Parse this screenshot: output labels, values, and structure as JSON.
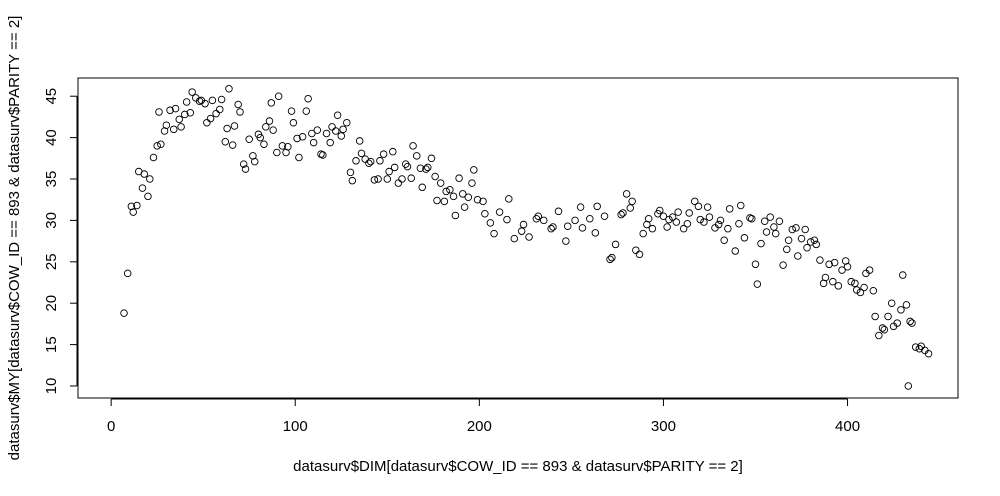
{
  "chart_data": {
    "type": "scatter",
    "xlabel": "datasurv$DIM[datasurv$COW_ID == 893 & datasurv$PARITY == 2]",
    "ylabel": "datasurv$MY[datasurv$COW_ID == 893 & datasurv$PARITY == 2]",
    "xlim": [
      -18,
      460
    ],
    "ylim": [
      8.55,
      47.2
    ],
    "xticks": [
      0,
      100,
      200,
      300,
      400
    ],
    "yticks": [
      10,
      15,
      20,
      25,
      30,
      35,
      40,
      45
    ],
    "color": "#000000",
    "x": [
      7,
      9,
      11,
      12,
      14,
      15,
      17,
      18,
      20,
      21,
      23,
      25,
      26,
      27,
      29,
      30,
      32,
      34,
      35,
      37,
      38,
      40,
      41,
      43,
      44,
      46,
      48,
      49,
      51,
      52,
      54,
      55,
      57,
      59,
      60,
      62,
      63,
      64,
      66,
      67,
      69,
      70,
      72,
      73,
      75,
      77,
      78,
      80,
      81,
      83,
      84,
      86,
      87,
      88,
      90,
      91,
      93,
      95,
      96,
      98,
      99,
      101,
      102,
      104,
      106,
      107,
      109,
      110,
      112,
      114,
      115,
      117,
      119,
      120,
      122,
      123,
      125,
      126,
      128,
      130,
      131,
      133,
      135,
      136,
      138,
      140,
      141,
      143,
      145,
      146,
      148,
      150,
      151,
      153,
      154,
      156,
      158,
      160,
      161,
      163,
      164,
      166,
      168,
      169,
      171,
      172,
      174,
      176,
      177,
      179,
      181,
      182,
      184,
      186,
      187,
      189,
      191,
      192,
      194,
      196,
      197,
      199,
      202,
      203,
      206,
      208,
      211,
      215,
      216,
      219,
      223,
      224,
      227,
      231,
      232,
      235,
      239,
      240,
      243,
      247,
      248,
      252,
      255,
      256,
      260,
      263,
      264,
      268,
      271,
      272,
      274,
      277,
      278,
      280,
      282,
      283,
      285,
      287,
      289,
      291,
      292,
      294,
      297,
      298,
      300,
      302,
      303,
      305,
      307,
      308,
      311,
      313,
      314,
      317,
      319,
      320,
      322,
      324,
      325,
      328,
      330,
      331,
      333,
      335,
      336,
      339,
      341,
      342,
      344,
      347,
      348,
      350,
      351,
      353,
      355,
      356,
      358,
      360,
      361,
      363,
      365,
      367,
      368,
      370,
      372,
      373,
      375,
      377,
      378,
      380,
      382,
      383,
      385,
      387,
      388,
      390,
      392,
      393,
      395,
      397,
      399,
      400,
      402,
      404,
      405,
      407,
      409,
      410,
      412,
      414,
      415,
      417,
      419,
      420,
      422,
      424,
      425,
      427,
      429,
      430,
      432,
      433,
      434,
      435,
      437,
      439,
      440,
      442,
      444
    ],
    "values": [
      18.8,
      23.6,
      31.7,
      31.0,
      31.8,
      35.9,
      33.9,
      35.6,
      32.9,
      35.0,
      37.6,
      39.0,
      43.1,
      39.2,
      40.8,
      41.5,
      43.3,
      41.0,
      43.5,
      42.2,
      41.3,
      42.8,
      44.3,
      43.0,
      45.5,
      44.8,
      44.4,
      44.5,
      44.1,
      41.8,
      42.3,
      44.5,
      42.9,
      43.4,
      44.6,
      39.5,
      41.1,
      45.9,
      39.1,
      41.4,
      44.0,
      43.1,
      36.8,
      36.2,
      39.8,
      37.8,
      37.1,
      40.4,
      40.0,
      39.2,
      41.3,
      42.0,
      44.2,
      40.9,
      38.2,
      45.0,
      39.0,
      38.2,
      38.9,
      43.2,
      41.8,
      39.9,
      37.6,
      40.1,
      43.2,
      44.7,
      40.5,
      39.4,
      40.9,
      38.0,
      37.9,
      40.5,
      39.4,
      41.3,
      40.8,
      42.7,
      40.2,
      41.0,
      41.8,
      35.8,
      34.8,
      37.2,
      39.6,
      38.1,
      37.4,
      36.9,
      37.1,
      34.9,
      35.0,
      37.2,
      38.0,
      35.0,
      35.9,
      38.3,
      36.4,
      34.5,
      35.0,
      36.8,
      36.5,
      35.1,
      39.0,
      37.8,
      36.3,
      34.0,
      36.2,
      36.4,
      37.5,
      35.3,
      32.4,
      34.5,
      32.3,
      33.5,
      33.7,
      32.9,
      30.6,
      35.1,
      33.2,
      31.6,
      32.8,
      34.5,
      36.1,
      32.5,
      32.3,
      30.8,
      29.7,
      28.4,
      31.0,
      30.1,
      32.6,
      27.8,
      28.7,
      29.5,
      28.0,
      30.2,
      30.5,
      30.0,
      29.0,
      29.2,
      31.1,
      27.5,
      29.3,
      30.0,
      31.6,
      29.1,
      30.2,
      28.5,
      31.7,
      30.5,
      25.3,
      25.5,
      27.1,
      30.7,
      30.9,
      33.2,
      31.5,
      32.3,
      26.4,
      25.9,
      28.4,
      29.5,
      30.2,
      29.0,
      30.8,
      31.2,
      30.5,
      29.2,
      30.1,
      30.4,
      29.8,
      31.0,
      29.0,
      29.6,
      30.9,
      32.3,
      31.7,
      30.1,
      29.8,
      31.6,
      30.4,
      29.1,
      29.5,
      30.0,
      27.6,
      29.0,
      31.4,
      26.3,
      29.6,
      31.8,
      27.9,
      30.3,
      30.2,
      24.7,
      22.3,
      27.2,
      29.9,
      28.6,
      30.4,
      29.2,
      28.4,
      29.9,
      24.6,
      26.5,
      27.6,
      28.9,
      29.1,
      25.7,
      27.8,
      28.9,
      26.7,
      27.4,
      27.6,
      27.1,
      25.2,
      22.4,
      23.1,
      24.7,
      22.6,
      24.9,
      22.1,
      24.0,
      25.1,
      24.4,
      22.6,
      22.4,
      21.6,
      21.3,
      21.9,
      23.6,
      24.0,
      21.5,
      18.4,
      16.1,
      17.0,
      16.8,
      18.4,
      20.0,
      17.2,
      17.6,
      19.2,
      23.4,
      19.8,
      10.0,
      17.8,
      17.6,
      14.7,
      14.5,
      14.8,
      14.3,
      13.9
    ]
  }
}
